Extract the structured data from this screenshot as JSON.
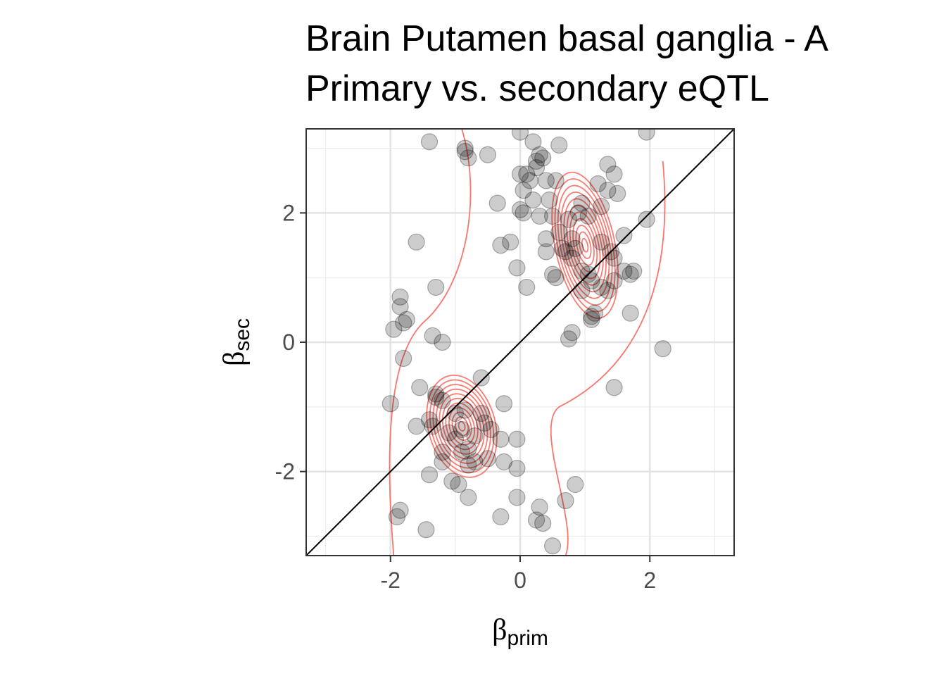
{
  "chart_data": {
    "type": "scatter",
    "title": "Brain Putamen basal ganglia - A",
    "subtitle": "Primary vs. secondary eQTL",
    "xlabel": {
      "symbol": "β",
      "subscript": "prim"
    },
    "ylabel": {
      "symbol": "β",
      "subscript": "sec"
    },
    "xlim": [
      -3.3,
      3.3
    ],
    "ylim": [
      -3.3,
      3.3
    ],
    "x_ticks": [
      -2,
      0,
      2
    ],
    "y_ticks": [
      -2,
      0,
      2
    ],
    "x_tick_labels": [
      "-2",
      "0",
      "2"
    ],
    "y_tick_labels": [
      "-2",
      "0",
      "2"
    ],
    "grid": true,
    "reference_line": {
      "slope": 1,
      "intercept": 0,
      "color": "#000000"
    },
    "point_color": "#000000",
    "point_opacity": 0.2,
    "contour_color": "#f8766d",
    "contours": {
      "clusters": [
        {
          "center": [
            1.0,
            1.5
          ],
          "spread": [
            0.4,
            1.0
          ]
        },
        {
          "center": [
            -0.9,
            -1.3
          ],
          "spread": [
            0.45,
            0.7
          ]
        }
      ],
      "levels": 11
    },
    "points": [
      [
        -1.4,
        3.1
      ],
      [
        -0.85,
        3.0
      ],
      [
        -0.85,
        2.95
      ],
      [
        -0.8,
        2.85
      ],
      [
        -0.5,
        2.9
      ],
      [
        0.0,
        3.25
      ],
      [
        0.2,
        3.1
      ],
      [
        0.3,
        2.9
      ],
      [
        0.25,
        2.8
      ],
      [
        0.35,
        2.85
      ],
      [
        0.6,
        3.05
      ],
      [
        1.95,
        3.25
      ],
      [
        1.35,
        2.75
      ],
      [
        1.45,
        2.6
      ],
      [
        0.25,
        2.7
      ],
      [
        0.1,
        2.6
      ],
      [
        0.0,
        2.6
      ],
      [
        0.15,
        2.5
      ],
      [
        0.4,
        2.5
      ],
      [
        0.55,
        2.5
      ],
      [
        -0.35,
        2.15
      ],
      [
        0.05,
        2.35
      ],
      [
        0.2,
        2.2
      ],
      [
        0.45,
        2.2
      ],
      [
        1.2,
        2.45
      ],
      [
        1.35,
        2.35
      ],
      [
        1.5,
        2.3
      ],
      [
        0.0,
        2.05
      ],
      [
        0.05,
        2.0
      ],
      [
        0.3,
        1.95
      ],
      [
        0.5,
        1.95
      ],
      [
        0.75,
        1.9
      ],
      [
        0.9,
        2.0
      ],
      [
        0.95,
        2.15
      ],
      [
        1.05,
        1.95
      ],
      [
        1.25,
        2.1
      ],
      [
        1.95,
        1.9
      ],
      [
        -1.6,
        1.55
      ],
      [
        -0.3,
        1.5
      ],
      [
        -0.15,
        1.55
      ],
      [
        0.4,
        1.6
      ],
      [
        0.6,
        1.7
      ],
      [
        0.8,
        1.6
      ],
      [
        1.25,
        1.55
      ],
      [
        1.6,
        1.65
      ],
      [
        0.65,
        1.45
      ],
      [
        0.7,
        1.4
      ],
      [
        0.85,
        1.45
      ],
      [
        0.4,
        1.4
      ],
      [
        0.8,
        1.3
      ],
      [
        1.4,
        1.4
      ],
      [
        1.45,
        1.3
      ],
      [
        -0.05,
        1.15
      ],
      [
        0.5,
        1.05
      ],
      [
        0.55,
        1.0
      ],
      [
        0.95,
        1.1
      ],
      [
        1.05,
        1.05
      ],
      [
        1.6,
        1.1
      ],
      [
        1.7,
        1.05
      ],
      [
        1.75,
        1.1
      ],
      [
        1.1,
        0.95
      ],
      [
        1.25,
        0.85
      ],
      [
        1.35,
        0.8
      ],
      [
        0.95,
        0.8
      ],
      [
        1.45,
        0.95
      ],
      [
        -1.3,
        0.85
      ],
      [
        0.1,
        0.85
      ],
      [
        -1.85,
        0.7
      ],
      [
        -1.85,
        0.55
      ],
      [
        -1.8,
        0.3
      ],
      [
        -1.75,
        0.35
      ],
      [
        -1.95,
        0.2
      ],
      [
        1.1,
        0.4
      ],
      [
        1.15,
        0.45
      ],
      [
        1.1,
        0.35
      ],
      [
        0.8,
        0.15
      ],
      [
        1.7,
        0.45
      ],
      [
        -1.35,
        0.1
      ],
      [
        -1.2,
        0.0
      ],
      [
        0.75,
        0.05
      ],
      [
        2.2,
        -0.1
      ],
      [
        -1.8,
        -0.25
      ],
      [
        1.45,
        -0.7
      ],
      [
        -2.0,
        -0.95
      ],
      [
        -1.55,
        -0.7
      ],
      [
        -1.3,
        -0.8
      ],
      [
        -1.3,
        -0.85
      ],
      [
        -1.2,
        -0.9
      ],
      [
        -0.6,
        -0.55
      ],
      [
        -0.25,
        -0.95
      ],
      [
        -1.6,
        -1.3
      ],
      [
        -1.4,
        -1.2
      ],
      [
        -1.35,
        -1.3
      ],
      [
        -1.0,
        -1.1
      ],
      [
        -0.85,
        -1.05
      ],
      [
        -0.6,
        -1.1
      ],
      [
        -0.55,
        -1.25
      ],
      [
        -1.1,
        -1.4
      ],
      [
        -1.0,
        -1.5
      ],
      [
        -0.9,
        -1.35
      ],
      [
        -0.7,
        -1.45
      ],
      [
        -0.45,
        -1.35
      ],
      [
        -0.3,
        -1.5
      ],
      [
        -0.05,
        -1.5
      ],
      [
        -1.2,
        -1.7
      ],
      [
        -0.9,
        -1.7
      ],
      [
        -0.8,
        -1.65
      ],
      [
        -1.2,
        -1.85
      ],
      [
        -0.8,
        -1.9
      ],
      [
        -0.7,
        -1.85
      ],
      [
        -0.5,
        -1.8
      ],
      [
        -0.25,
        -1.85
      ],
      [
        -1.4,
        -2.05
      ],
      [
        -0.05,
        -1.95
      ],
      [
        -1.05,
        -2.15
      ],
      [
        -0.95,
        -2.2
      ],
      [
        -0.8,
        -2.4
      ],
      [
        0.85,
        -2.2
      ],
      [
        -0.05,
        -2.4
      ],
      [
        0.7,
        -2.45
      ],
      [
        -1.85,
        -2.6
      ],
      [
        -1.9,
        -2.7
      ],
      [
        -0.3,
        -2.7
      ],
      [
        0.3,
        -2.55
      ],
      [
        0.25,
        -2.75
      ],
      [
        0.35,
        -2.8
      ],
      [
        -1.45,
        -2.9
      ],
      [
        0.5,
        -3.15
      ]
    ]
  }
}
